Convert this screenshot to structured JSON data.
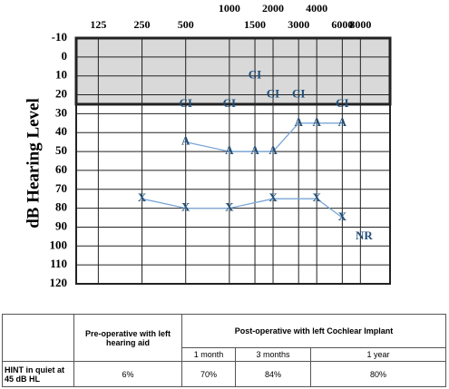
{
  "chart_data": {
    "type": "audiogram",
    "ylabel": "dB Hearing Level",
    "xlog": true,
    "xlim": [
      88,
      12800
    ],
    "xticks": [
      125,
      250,
      500,
      1000,
      1500,
      2000,
      3000,
      4000,
      6000,
      8000
    ],
    "ylim": [
      -10,
      120
    ],
    "yticks": [
      -10,
      0,
      10,
      20,
      30,
      40,
      50,
      60,
      70,
      80,
      90,
      100,
      110,
      120
    ],
    "grid": true,
    "shaded": [
      -10,
      25
    ],
    "series": [
      {
        "marker": "X",
        "line": true,
        "color": "#1f4e79",
        "line_color": "#7aa6d6",
        "x": [
          250,
          500,
          1000,
          2000,
          4000,
          6000
        ],
        "values": [
          75,
          80,
          80,
          75,
          75,
          85
        ]
      },
      {
        "marker": "A",
        "line": true,
        "color": "#1f4e79",
        "line_color": "#7aa6d6",
        "x": [
          500,
          1000,
          1500,
          2000,
          3000,
          4000,
          6000
        ],
        "values": [
          45,
          50,
          50,
          50,
          35,
          35,
          35
        ]
      },
      {
        "marker": "CI",
        "line": false,
        "color": "#1f4e79",
        "x": [
          500,
          1000,
          1500,
          2000,
          3000,
          6000
        ],
        "values": [
          25,
          25,
          10,
          20,
          20,
          25
        ]
      }
    ],
    "annotations": [
      {
        "text": "NR",
        "x": 8000,
        "y": 95
      }
    ]
  },
  "table": {
    "headers": [
      [
        "Pre-operative with left hearing aid",
        "Post-operative with left Cochlear Implant"
      ],
      [
        "1 month",
        "3 months",
        "1 year"
      ]
    ],
    "rows": [
      [
        "HINT in quiet at 45 dB HL",
        "6%",
        "70%",
        "84%",
        "80%"
      ]
    ]
  }
}
